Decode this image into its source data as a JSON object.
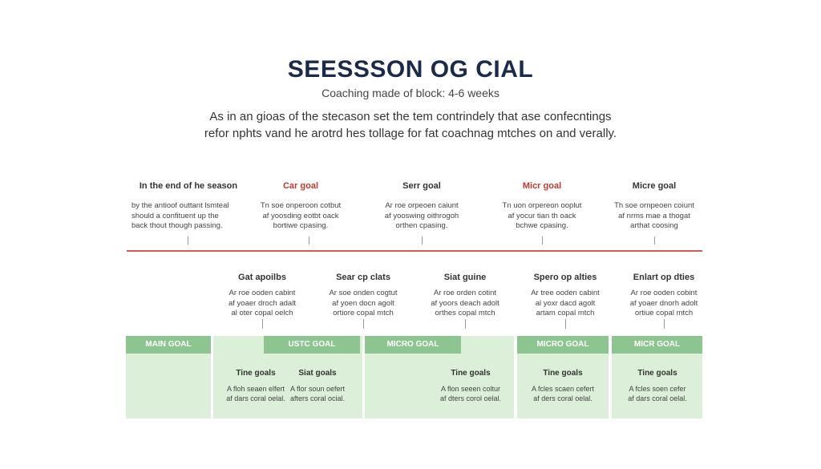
{
  "header": {
    "title": "SEESSSON OG CIAL",
    "subtitle": "Coaching made of block: 4-6 weeks",
    "intro_line1": "As in an gioas of the stecason set the tem contrindely that ase confecntings",
    "intro_line2": "refor nphts vand he arotrd hes tollage for fat coachnag mtches on and verally."
  },
  "top_row": [
    {
      "heading": "In the end of he season",
      "text": [
        "by the antioof outtant lsmteal",
        "should a confituent up the",
        "back thout though passing."
      ]
    },
    {
      "heading": "Car goal",
      "text": [
        "Tn soe onperoon cotbut",
        "af yoosding eotbt oack",
        "bortiwe cpasing."
      ]
    },
    {
      "heading": "Serr goal",
      "text": [
        "Ar roe orpeoen caiunt",
        "af yooswing oithrogoh",
        "orthen cpasing."
      ]
    },
    {
      "heading": "Micr goal",
      "text": [
        "Tn uon orpereon ooplut",
        "af yocur tian th oack",
        "bchwe cpasing."
      ]
    },
    {
      "heading": "Micre goal",
      "text": [
        "Th soe ornpeoen coiunt",
        "af nrms mae a thogat",
        "arthat coosing"
      ]
    }
  ],
  "mid_row": [
    {
      "heading": "Gat apoilbs",
      "text": [
        "Ar roe ooden cabint",
        "af yoaer droch adalt",
        "al oter copal oelch"
      ]
    },
    {
      "heading": "Sear cp clats",
      "text": [
        "Ar soe onden cogtut",
        "af yoen docn agolt",
        "ortiore copal mtch"
      ]
    },
    {
      "heading": "Siat guine",
      "text": [
        "Ar roe orden cotint",
        "af yoors deach adolt",
        "orthes copal mtch"
      ]
    },
    {
      "heading": "Spero op alties",
      "text": [
        "Ar tree ooden cabint",
        "al yoxr dacd agolt",
        "artam copal mtch"
      ]
    },
    {
      "heading": "Enlart op dties",
      "text": [
        "Ar roe ooden cobint",
        "af yoaer dnorh adolt",
        "ortiue copal mtch"
      ]
    }
  ],
  "bands": [
    {
      "head": "MAIN GOAL"
    },
    {
      "head": "USTC GOAL",
      "goals": [
        {
          "heading": "Tine goals",
          "text": [
            "A floh seaen elfert",
            "af dars coral oelal."
          ]
        },
        {
          "heading": "Siat goals",
          "text": [
            "A flor soun oefert",
            "afters coral ocial."
          ]
        }
      ]
    },
    {
      "head": "MICRO GOAL",
      "goals": [
        {
          "heading": "Tine goals",
          "text": [
            "A flon seeen coltur",
            "af dters corol oelal."
          ]
        }
      ]
    },
    {
      "head": "MICRO GOAL",
      "goals": [
        {
          "heading": "Tine goals",
          "text": [
            "A fcles scaen cefert",
            "af ders coral oelal."
          ]
        }
      ]
    },
    {
      "head": "MICR GOAL",
      "goals": [
        {
          "heading": "Tine goals",
          "text": [
            "A fcles soen cefer",
            "af dars coral oelal."
          ]
        }
      ]
    }
  ]
}
